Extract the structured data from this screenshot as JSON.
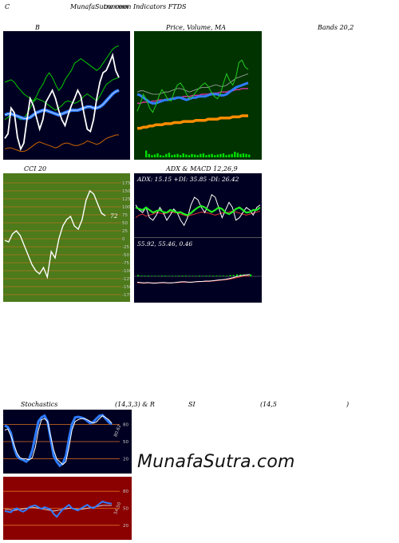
{
  "header": {
    "c_label": "C",
    "site_title": "MunafaSutra.com",
    "indicators_title": "common Indicators FTDS"
  },
  "labels": {
    "b": "B",
    "price_volume_ma": "Price,  Volume,  MA",
    "bands": "Bands 20,2",
    "cci": "CCI 20",
    "adx_macd": "ADX  & MACD 12,26,9",
    "stochastics": "Stochastics",
    "stoch_params": "(14,3,3) & R",
    "si": "SI",
    "rsi_params": "(14,5",
    "close_paren": ")"
  },
  "watermark": "MunafaSutra.com",
  "colors": {
    "panel_dark": "#000022",
    "panel_green": "#003300",
    "cci_bg": "#4d7a1a",
    "rsi_bg": "#8b0000",
    "blue": "#2f7cff",
    "green_line": "#22cc22",
    "orange": "#ff8c00",
    "white": "#ffffff"
  },
  "chart_data": [
    {
      "type": "line",
      "name": "bollinger",
      "series": [
        {
          "values": [
            0.62,
            0.63,
            0.64,
            0.62,
            0.58,
            0.55,
            0.52,
            0.5,
            0.48,
            0.46,
            0.5,
            0.56,
            0.6,
            0.66,
            0.7,
            0.66,
            0.6,
            0.55,
            0.58,
            0.64,
            0.68,
            0.72,
            0.78,
            0.8,
            0.82,
            0.8,
            0.78,
            0.76,
            0.74,
            0.72,
            0.74,
            0.78,
            0.82,
            0.86,
            0.9,
            0.92,
            0.93
          ]
        },
        {
          "values": [
            0.3,
            0.32,
            0.35,
            0.33,
            0.32,
            0.3,
            0.31,
            0.35,
            0.4,
            0.45,
            0.48,
            0.47,
            0.46,
            0.44,
            0.42,
            0.4,
            0.38,
            0.4,
            0.42,
            0.45,
            0.46,
            0.45,
            0.44,
            0.45,
            0.47,
            0.5,
            0.52,
            0.5,
            0.48,
            0.46,
            0.5,
            0.55,
            0.6,
            0.62,
            0.64,
            0.65,
            0.66
          ]
        },
        {
          "values": [
            0.34,
            0.35,
            0.35,
            0.34,
            0.33,
            0.32,
            0.31,
            0.31,
            0.32,
            0.34,
            0.36,
            0.37,
            0.38,
            0.38,
            0.37,
            0.36,
            0.35,
            0.34,
            0.35,
            0.36,
            0.37,
            0.38,
            0.38,
            0.38,
            0.39,
            0.4,
            0.41,
            0.41,
            0.4,
            0.4,
            0.41,
            0.43,
            0.46,
            0.49,
            0.52,
            0.54,
            0.55
          ]
        },
        {
          "values": [
            0.14,
            0.18,
            0.4,
            0.36,
            0.15,
            0.05,
            0.1,
            0.3,
            0.48,
            0.42,
            0.32,
            0.22,
            0.3,
            0.45,
            0.5,
            0.55,
            0.48,
            0.38,
            0.3,
            0.25,
            0.34,
            0.42,
            0.48,
            0.55,
            0.5,
            0.35,
            0.22,
            0.2,
            0.3,
            0.48,
            0.62,
            0.7,
            0.72,
            0.78,
            0.85,
            0.72,
            0.66
          ]
        },
        {
          "values": [
            0.05,
            0.06,
            0.06,
            0.05,
            0.04,
            0.03,
            0.03,
            0.04,
            0.06,
            0.08,
            0.1,
            0.11,
            0.1,
            0.09,
            0.08,
            0.07,
            0.06,
            0.07,
            0.09,
            0.1,
            0.1,
            0.09,
            0.08,
            0.08,
            0.09,
            0.1,
            0.12,
            0.11,
            0.1,
            0.09,
            0.1,
            0.12,
            0.14,
            0.15,
            0.16,
            0.17,
            0.17
          ]
        }
      ]
    },
    {
      "type": "line",
      "name": "price_volume_ma",
      "series": [
        {
          "values": [
            0.52,
            0.53,
            0.53,
            0.52,
            0.51,
            0.5,
            0.5,
            0.5,
            0.51,
            0.52,
            0.52,
            0.53,
            0.54,
            0.55,
            0.55,
            0.54,
            0.53,
            0.52,
            0.53,
            0.54,
            0.55,
            0.56,
            0.56,
            0.56,
            0.57,
            0.58,
            0.58,
            0.57,
            0.57,
            0.58,
            0.6,
            0.62,
            0.64,
            0.65,
            0.66,
            0.67,
            0.68
          ]
        },
        {
          "values": [
            0.5,
            0.49,
            0.47,
            0.45,
            0.43,
            0.42,
            0.42,
            0.43,
            0.44,
            0.45,
            0.45,
            0.46,
            0.46,
            0.47,
            0.47,
            0.46,
            0.45,
            0.46,
            0.47,
            0.47,
            0.48,
            0.48,
            0.48,
            0.49,
            0.5,
            0.5,
            0.5,
            0.49,
            0.49,
            0.5,
            0.52,
            0.54,
            0.56,
            0.57,
            0.58,
            0.59,
            0.6
          ]
        },
        {
          "values": [
            0.42,
            0.42,
            0.43,
            0.43,
            0.43,
            0.44,
            0.44,
            0.45,
            0.45,
            0.45,
            0.46,
            0.46,
            0.47,
            0.47,
            0.47,
            0.48,
            0.48,
            0.48,
            0.49,
            0.49,
            0.49,
            0.5,
            0.5,
            0.5,
            0.51,
            0.51,
            0.51,
            0.52,
            0.52,
            0.52,
            0.53,
            0.53,
            0.54,
            0.54,
            0.55,
            0.55,
            0.55
          ]
        },
        {
          "values": [
            0.2,
            0.2,
            0.21,
            0.21,
            0.22,
            0.22,
            0.23,
            0.23,
            0.23,
            0.24,
            0.24,
            0.24,
            0.25,
            0.25,
            0.25,
            0.26,
            0.26,
            0.26,
            0.26,
            0.27,
            0.27,
            0.27,
            0.27,
            0.28,
            0.28,
            0.28,
            0.28,
            0.29,
            0.29,
            0.29,
            0.29,
            0.3,
            0.3,
            0.3,
            0.31,
            0.31,
            0.31
          ]
        },
        {
          "values": [
            0.35,
            0.42,
            0.5,
            0.45,
            0.38,
            0.34,
            0.4,
            0.48,
            0.54,
            0.5,
            0.45,
            0.44,
            0.52,
            0.58,
            0.6,
            0.56,
            0.5,
            0.46,
            0.48,
            0.52,
            0.55,
            0.58,
            0.6,
            0.57,
            0.52,
            0.48,
            0.46,
            0.5,
            0.6,
            0.68,
            0.62,
            0.58,
            0.65,
            0.78,
            0.8,
            0.74,
            0.72
          ]
        }
      ],
      "volume": [
        0.6,
        0.3,
        0.2,
        0.25,
        0.35,
        0.2,
        0.15,
        0.3,
        0.4,
        0.2,
        0.25,
        0.3,
        0.2,
        0.35,
        0.25,
        0.2,
        0.3,
        0.25,
        0.2,
        0.3,
        0.35,
        0.2,
        0.25,
        0.3,
        0.2,
        0.25,
        0.3,
        0.35,
        0.2,
        0.25,
        0.3,
        0.5,
        0.4,
        0.3,
        0.35,
        0.3,
        0.25
      ]
    },
    {
      "type": "line",
      "name": "cci",
      "yticks": [
        175,
        150,
        125,
        100,
        75,
        50,
        25,
        0,
        -25,
        -50,
        -75,
        -100,
        -125,
        -150,
        -175
      ],
      "ylim": [
        -185,
        185
      ],
      "current_value_label": "72",
      "values": [
        -5,
        -10,
        15,
        25,
        10,
        -20,
        -50,
        -80,
        -100,
        -110,
        -90,
        -120,
        -40,
        -60,
        0,
        40,
        60,
        70,
        40,
        30,
        60,
        120,
        150,
        140,
        110,
        80,
        72
      ]
    },
    {
      "type": "line",
      "name": "adx",
      "header": "ADX: 15.15  +DI: 35.85  -DI: 26.42",
      "series": [
        {
          "values": [
            0.55,
            0.52,
            0.5,
            0.55,
            0.5,
            0.45,
            0.48,
            0.5,
            0.46,
            0.45,
            0.5,
            0.48,
            0.45,
            0.46,
            0.42,
            0.4,
            0.44,
            0.5,
            0.55,
            0.58,
            0.55,
            0.5,
            0.46,
            0.5,
            0.55,
            0.52,
            0.45,
            0.42,
            0.46,
            0.52,
            0.55,
            0.5,
            0.45,
            0.46,
            0.5,
            0.5,
            0.55
          ]
        },
        {
          "values": [
            0.35,
            0.4,
            0.42,
            0.38,
            0.4,
            0.42,
            0.45,
            0.44,
            0.42,
            0.44,
            0.46,
            0.45,
            0.44,
            0.42,
            0.4,
            0.38,
            0.4,
            0.42,
            0.44,
            0.46,
            0.45,
            0.44,
            0.42,
            0.4,
            0.42,
            0.44,
            0.45,
            0.46,
            0.48,
            0.46,
            0.44,
            0.42,
            0.4,
            0.42,
            0.44,
            0.46,
            0.48
          ]
        },
        {
          "values": [
            0.6,
            0.5,
            0.45,
            0.55,
            0.35,
            0.3,
            0.4,
            0.55,
            0.45,
            0.3,
            0.4,
            0.52,
            0.45,
            0.3,
            0.2,
            0.35,
            0.6,
            0.75,
            0.7,
            0.55,
            0.45,
            0.6,
            0.8,
            0.75,
            0.55,
            0.35,
            0.5,
            0.65,
            0.55,
            0.3,
            0.35,
            0.45,
            0.55,
            0.5,
            0.4,
            0.55,
            0.6
          ]
        }
      ]
    },
    {
      "type": "line",
      "name": "macd",
      "header": "55.92,  55.46,  0.46",
      "series": [
        {
          "values": [
            0.1,
            0.09,
            0.08,
            0.09,
            0.08,
            0.07,
            0.08,
            0.09,
            0.09,
            0.08,
            0.08,
            0.09,
            0.1,
            0.11,
            0.11,
            0.1,
            0.1,
            0.11,
            0.12,
            0.12,
            0.13,
            0.13,
            0.14,
            0.15,
            0.16,
            0.17,
            0.18,
            0.2,
            0.22,
            0.25,
            0.27,
            0.29,
            0.3,
            0.31
          ]
        },
        {
          "values": [
            0.08,
            0.08,
            0.07,
            0.08,
            0.08,
            0.08,
            0.08,
            0.08,
            0.08,
            0.08,
            0.08,
            0.09,
            0.09,
            0.1,
            0.1,
            0.1,
            0.1,
            0.11,
            0.11,
            0.12,
            0.12,
            0.12,
            0.13,
            0.14,
            0.15,
            0.16,
            0.17,
            0.18,
            0.2,
            0.22,
            0.24,
            0.26,
            0.27,
            0.28
          ]
        }
      ],
      "histogram": [
        0.02,
        0.01,
        0.01,
        0.01,
        0.0,
        0.0,
        0.0,
        0.01,
        0.01,
        0.0,
        0.0,
        0.0,
        0.01,
        0.01,
        0.01,
        0.0,
        0.0,
        0.0,
        0.01,
        0.0,
        0.01,
        0.01,
        0.01,
        0.01,
        0.01,
        0.01,
        0.01,
        0.02,
        0.02,
        0.03,
        0.03,
        0.03,
        0.03,
        0.03
      ]
    },
    {
      "type": "line",
      "name": "stochastics",
      "yticks": [
        80,
        50,
        20
      ],
      "ylim": [
        0,
        100
      ],
      "current_value_label": "80.62",
      "series": [
        {
          "values": [
            70,
            72,
            60,
            45,
            30,
            22,
            20,
            20,
            18,
            22,
            40,
            70,
            88,
            90,
            85,
            60,
            35,
            20,
            15,
            10,
            15,
            40,
            70,
            85,
            88,
            90,
            90,
            88,
            85,
            82,
            84,
            90,
            95,
            92,
            88,
            82
          ]
        },
        {
          "values": [
            78,
            75,
            65,
            40,
            25,
            20,
            18,
            15,
            20,
            35,
            60,
            85,
            92,
            95,
            85,
            55,
            25,
            15,
            8,
            12,
            25,
            55,
            80,
            92,
            93,
            92,
            90,
            86,
            82,
            84,
            90,
            95,
            96,
            90,
            84,
            80
          ]
        }
      ]
    },
    {
      "type": "line",
      "name": "rsi",
      "yticks": [
        80,
        50,
        20
      ],
      "ylim": [
        0,
        100
      ],
      "current_value_label": "54.50",
      "series": [
        {
          "values": [
            48,
            48,
            47,
            46,
            47,
            48,
            49,
            50,
            51,
            52,
            51,
            50,
            49,
            48,
            47,
            46,
            45,
            46,
            47,
            48,
            49,
            50,
            50,
            49,
            48,
            48,
            49,
            50,
            51,
            52,
            53,
            54,
            55,
            55,
            55,
            55
          ]
        },
        {
          "values": [
            45,
            44,
            43,
            48,
            50,
            46,
            44,
            47,
            52,
            54,
            55,
            52,
            49,
            52,
            50,
            48,
            40,
            35,
            42,
            48,
            52,
            56,
            50,
            48,
            46,
            50,
            53,
            56,
            52,
            50,
            54,
            58,
            62,
            60,
            59,
            58
          ]
        }
      ]
    }
  ]
}
